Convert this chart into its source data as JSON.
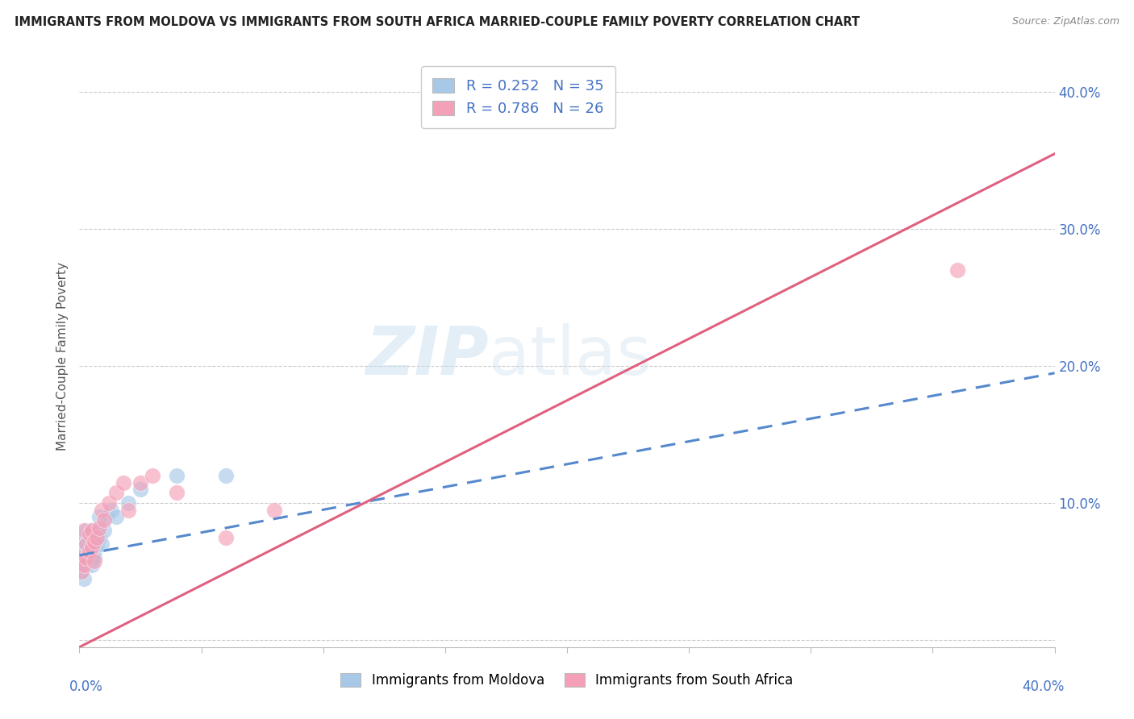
{
  "title": "IMMIGRANTS FROM MOLDOVA VS IMMIGRANTS FROM SOUTH AFRICA MARRIED-COUPLE FAMILY POVERTY CORRELATION CHART",
  "source": "Source: ZipAtlas.com",
  "ylabel": "Married-Couple Family Poverty",
  "xlim": [
    0,
    0.4
  ],
  "ylim": [
    -0.005,
    0.42
  ],
  "moldova_color": "#a8c8e8",
  "moldova_line_color": "#4472c4",
  "south_africa_color": "#f4a0b8",
  "south_africa_line_color": "#e06080",
  "legend_text_color": "#4472c4",
  "moldova_R": 0.252,
  "moldova_N": 35,
  "south_africa_R": 0.786,
  "south_africa_N": 26,
  "mol_x": [
    0.001,
    0.001,
    0.001,
    0.001,
    0.002,
    0.002,
    0.002,
    0.002,
    0.003,
    0.003,
    0.003,
    0.003,
    0.004,
    0.004,
    0.004,
    0.005,
    0.005,
    0.005,
    0.005,
    0.006,
    0.006,
    0.006,
    0.007,
    0.007,
    0.008,
    0.008,
    0.009,
    0.01,
    0.011,
    0.013,
    0.015,
    0.02,
    0.025,
    0.04,
    0.06
  ],
  "mol_y": [
    0.055,
    0.065,
    0.07,
    0.05,
    0.06,
    0.045,
    0.075,
    0.065,
    0.055,
    0.07,
    0.06,
    0.08,
    0.065,
    0.058,
    0.075,
    0.06,
    0.07,
    0.055,
    0.08,
    0.065,
    0.06,
    0.075,
    0.07,
    0.08,
    0.075,
    0.09,
    0.07,
    0.08,
    0.09,
    0.095,
    0.09,
    0.1,
    0.11,
    0.12,
    0.12
  ],
  "sa_x": [
    0.001,
    0.001,
    0.002,
    0.002,
    0.003,
    0.003,
    0.004,
    0.004,
    0.005,
    0.005,
    0.006,
    0.006,
    0.007,
    0.008,
    0.009,
    0.01,
    0.012,
    0.015,
    0.018,
    0.02,
    0.025,
    0.03,
    0.04,
    0.06,
    0.08,
    0.36
  ],
  "sa_y": [
    0.05,
    0.06,
    0.055,
    0.08,
    0.06,
    0.07,
    0.065,
    0.078,
    0.068,
    0.08,
    0.072,
    0.058,
    0.075,
    0.082,
    0.095,
    0.088,
    0.1,
    0.108,
    0.115,
    0.095,
    0.115,
    0.12,
    0.108,
    0.075,
    0.095,
    0.27
  ],
  "mol_line_start_x": 0.0,
  "mol_line_end_x": 0.4,
  "mol_line_start_y": 0.062,
  "mol_line_end_y": 0.195,
  "sa_line_start_x": 0.0,
  "sa_line_end_x": 0.4,
  "sa_line_start_y": -0.005,
  "sa_line_end_y": 0.355,
  "background_color": "#ffffff",
  "grid_color": "#cccccc",
  "right_axis_color": "#4472c4"
}
